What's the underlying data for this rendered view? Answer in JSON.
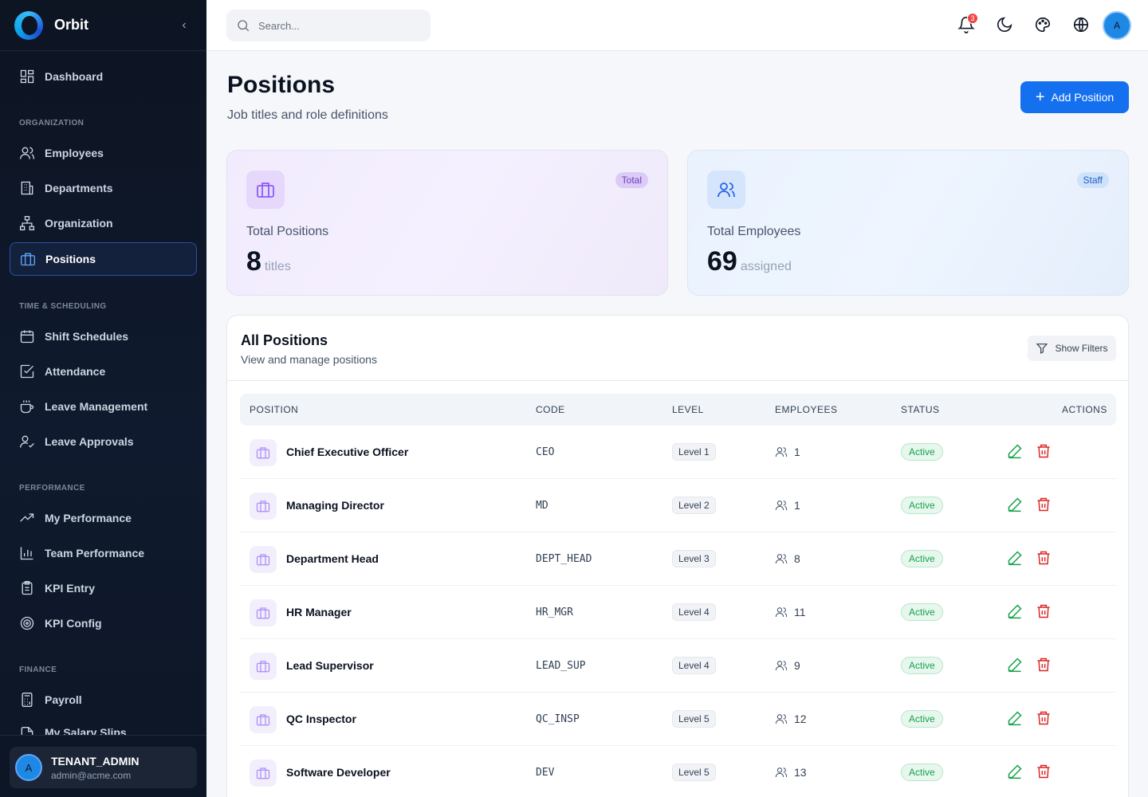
{
  "brand": {
    "name": "Orbit",
    "collapse_glyph": "‹"
  },
  "sidebar": {
    "dashboard": "Dashboard",
    "sections": [
      "ORGANIZATION",
      "TIME & SCHEDULING",
      "PERFORMANCE",
      "FINANCE"
    ],
    "items": [
      {
        "label": "Employees",
        "icon": "users-icon"
      },
      {
        "label": "Departments",
        "icon": "building-icon"
      },
      {
        "label": "Organization",
        "icon": "org-chart-icon"
      },
      {
        "label": "Positions",
        "icon": "briefcase-icon",
        "active": true
      },
      {
        "label": "Shift Schedules",
        "icon": "calendar-icon"
      },
      {
        "label": "Attendance",
        "icon": "check-square-icon"
      },
      {
        "label": "Leave Management",
        "icon": "coffee-icon"
      },
      {
        "label": "Leave Approvals",
        "icon": "user-check-icon"
      },
      {
        "label": "My Performance",
        "icon": "trending-up-icon"
      },
      {
        "label": "Team Performance",
        "icon": "bar-chart-icon"
      },
      {
        "label": "KPI Entry",
        "icon": "clipboard-icon"
      },
      {
        "label": "KPI Config",
        "icon": "target-icon"
      },
      {
        "label": "Payroll",
        "icon": "calculator-icon"
      },
      {
        "label": "My Salary Slips",
        "icon": "file-icon"
      }
    ],
    "user": {
      "avatar": "A",
      "name": "TENANT_ADMIN",
      "email": "admin@acme.com"
    }
  },
  "topbar": {
    "search_placeholder": "Search...",
    "notification_count": "3",
    "avatar": "A"
  },
  "header": {
    "title": "Positions",
    "subtitle": "Job titles and role definitions",
    "add_button": "Add Position",
    "add_glyph": "+"
  },
  "stats": [
    {
      "tag": "Total",
      "label": "Total Positions",
      "value": "8",
      "unit": "titles"
    },
    {
      "tag": "Staff",
      "label": "Total Employees",
      "value": "69",
      "unit": "assigned"
    }
  ],
  "table": {
    "title": "All Positions",
    "subtitle": "View and manage positions",
    "filters_button": "Show Filters",
    "columns": [
      "POSITION",
      "CODE",
      "LEVEL",
      "EMPLOYEES",
      "STATUS",
      "ACTIONS"
    ],
    "rows": [
      {
        "name": "Chief Executive Officer",
        "code": "CEO",
        "level": "Level 1",
        "employees": "1",
        "status": "Active"
      },
      {
        "name": "Managing Director",
        "code": "MD",
        "level": "Level 2",
        "employees": "1",
        "status": "Active"
      },
      {
        "name": "Department Head",
        "code": "DEPT_HEAD",
        "level": "Level 3",
        "employees": "8",
        "status": "Active"
      },
      {
        "name": "HR Manager",
        "code": "HR_MGR",
        "level": "Level 4",
        "employees": "11",
        "status": "Active"
      },
      {
        "name": "Lead Supervisor",
        "code": "LEAD_SUP",
        "level": "Level 4",
        "employees": "9",
        "status": "Active"
      },
      {
        "name": "QC Inspector",
        "code": "QC_INSP",
        "level": "Level 5",
        "employees": "12",
        "status": "Active"
      },
      {
        "name": "Software Developer",
        "code": "DEV",
        "level": "Level 5",
        "employees": "13",
        "status": "Active"
      }
    ]
  },
  "colors": {
    "accent": "#1570ef",
    "sidebar_bg": "#0d1422",
    "active_green": "#16a34a",
    "danger": "#dc2626"
  }
}
